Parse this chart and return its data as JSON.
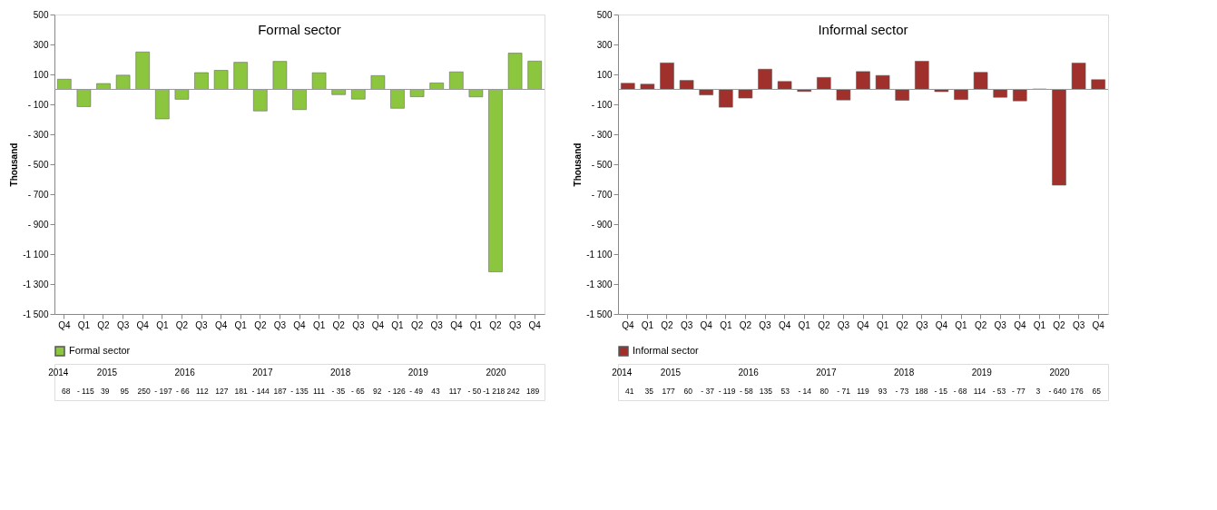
{
  "chart_data": [
    {
      "type": "bar",
      "title": "Formal sector",
      "ylabel": "Thousand",
      "categories": [
        "Q4",
        "Q1",
        "Q2",
        "Q3",
        "Q4",
        "Q1",
        "Q2",
        "Q3",
        "Q4",
        "Q1",
        "Q2",
        "Q3",
        "Q4",
        "Q1",
        "Q2",
        "Q3",
        "Q4",
        "Q1",
        "Q2",
        "Q3",
        "Q4",
        "Q1",
        "Q2",
        "Q3",
        "Q4"
      ],
      "annotations": [
        "2014",
        "2015",
        "2016",
        "2017",
        "2018",
        "2019",
        "2020"
      ],
      "series": [
        {
          "name": "Formal sector",
          "color": "#8cc63f",
          "values": [
            68,
            -115,
            39,
            95,
            250,
            -197,
            -66,
            112,
            127,
            181,
            -144,
            187,
            -135,
            111,
            -35,
            -65,
            92,
            -126,
            -49,
            43,
            117,
            -50,
            -1218,
            242,
            189
          ],
          "value_labels": [
            "68",
            "- 115",
            "39",
            "95",
            "250",
            "- 197",
            "- 66",
            "112",
            "127",
            "181",
            "- 144",
            "187",
            "- 135",
            "111",
            "- 35",
            "- 65",
            "92",
            "- 126",
            "- 49",
            "43",
            "117",
            "- 50",
            "-1 218",
            "242",
            "189"
          ]
        }
      ],
      "ylim": [
        -1500,
        500
      ],
      "yticks": [
        {
          "value": -1500,
          "label": "-1 500"
        },
        {
          "value": -1300,
          "label": "-1 300"
        },
        {
          "value": -1100,
          "label": "-1 100"
        },
        {
          "value": -900,
          "label": "- 900"
        },
        {
          "value": -700,
          "label": "- 700"
        },
        {
          "value": -500,
          "label": "- 500"
        },
        {
          "value": -300,
          "label": "- 300"
        },
        {
          "value": -100,
          "label": "- 100"
        },
        100,
        300,
        500
      ],
      "grid": false,
      "legend": "bottom"
    },
    {
      "type": "bar",
      "title": "Informal sector",
      "ylabel": "Thousand",
      "categories": [
        "Q4",
        "Q1",
        "Q2",
        "Q3",
        "Q4",
        "Q1",
        "Q2",
        "Q3",
        "Q4",
        "Q1",
        "Q2",
        "Q3",
        "Q4",
        "Q1",
        "Q2",
        "Q3",
        "Q4",
        "Q1",
        "Q2",
        "Q3",
        "Q4",
        "Q1",
        "Q2",
        "Q3",
        "Q4"
      ],
      "annotations": [
        "2014",
        "2015",
        "2016",
        "2017",
        "2018",
        "2019",
        "2020"
      ],
      "series": [
        {
          "name": "Informal sector",
          "color": "#a0302c",
          "values": [
            41,
            35,
            177,
            60,
            -37,
            -119,
            -58,
            135,
            53,
            -14,
            80,
            -71,
            119,
            93,
            -73,
            188,
            -15,
            -68,
            114,
            -53,
            -77,
            3,
            -640,
            176,
            65
          ],
          "value_labels": [
            "41",
            "35",
            "177",
            "60",
            "- 37",
            "- 119",
            "- 58",
            "135",
            "53",
            "- 14",
            "80",
            "- 71",
            "119",
            "93",
            "- 73",
            "188",
            "- 15",
            "- 68",
            "114",
            "- 53",
            "- 77",
            "3",
            "- 640",
            "176",
            "65"
          ]
        }
      ],
      "ylim": [
        -1500,
        500
      ],
      "yticks": [
        {
          "value": -1500,
          "label": "-1 500"
        },
        {
          "value": -1300,
          "label": "-1 300"
        },
        {
          "value": -1100,
          "label": "-1 100"
        },
        {
          "value": -900,
          "label": "- 900"
        },
        {
          "value": -700,
          "label": "- 700"
        },
        {
          "value": -500,
          "label": "- 500"
        },
        {
          "value": -300,
          "label": "- 300"
        },
        {
          "value": -100,
          "label": "- 100"
        },
        100,
        300,
        500
      ],
      "grid": false,
      "legend": "bottom"
    }
  ]
}
